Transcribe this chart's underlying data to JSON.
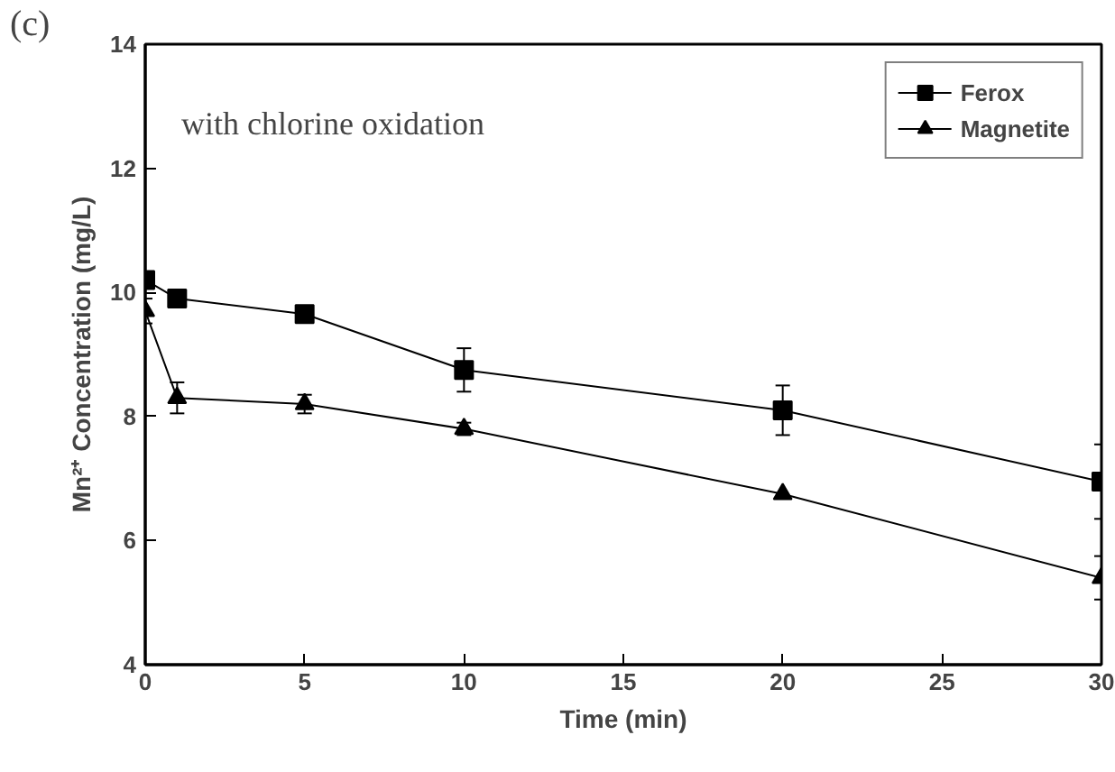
{
  "chart_data": {
    "type": "line",
    "xlabel": "Time (min)",
    "ylabel": "Mn²⁺ Concentration (mg/L)",
    "annotations": [
      "(c)",
      "with chlorine oxidation"
    ],
    "x": [
      0,
      1,
      5,
      10,
      20,
      30
    ],
    "series": [
      {
        "name": "Ferox",
        "color": "#000000",
        "marker": "square",
        "values": [
          10.2,
          9.9,
          9.65,
          8.75,
          8.1,
          6.95
        ],
        "errors": [
          null,
          null,
          null,
          0.35,
          0.4,
          0.6
        ]
      },
      {
        "name": "Magnetite",
        "color": "#000000",
        "marker": "triangle",
        "values": [
          9.7,
          8.3,
          8.2,
          7.8,
          6.75,
          5.4
        ],
        "errors": [
          0.2,
          0.25,
          0.15,
          0.1,
          null,
          0.35
        ]
      }
    ],
    "xlim": [
      0,
      30
    ],
    "ylim": [
      4,
      14
    ],
    "xticks": [
      0,
      5,
      10,
      15,
      20,
      25,
      30
    ],
    "yticks": [
      4,
      6,
      8,
      10,
      12,
      14
    ],
    "grid": false,
    "legend": "top right",
    "line_style": "solid"
  }
}
